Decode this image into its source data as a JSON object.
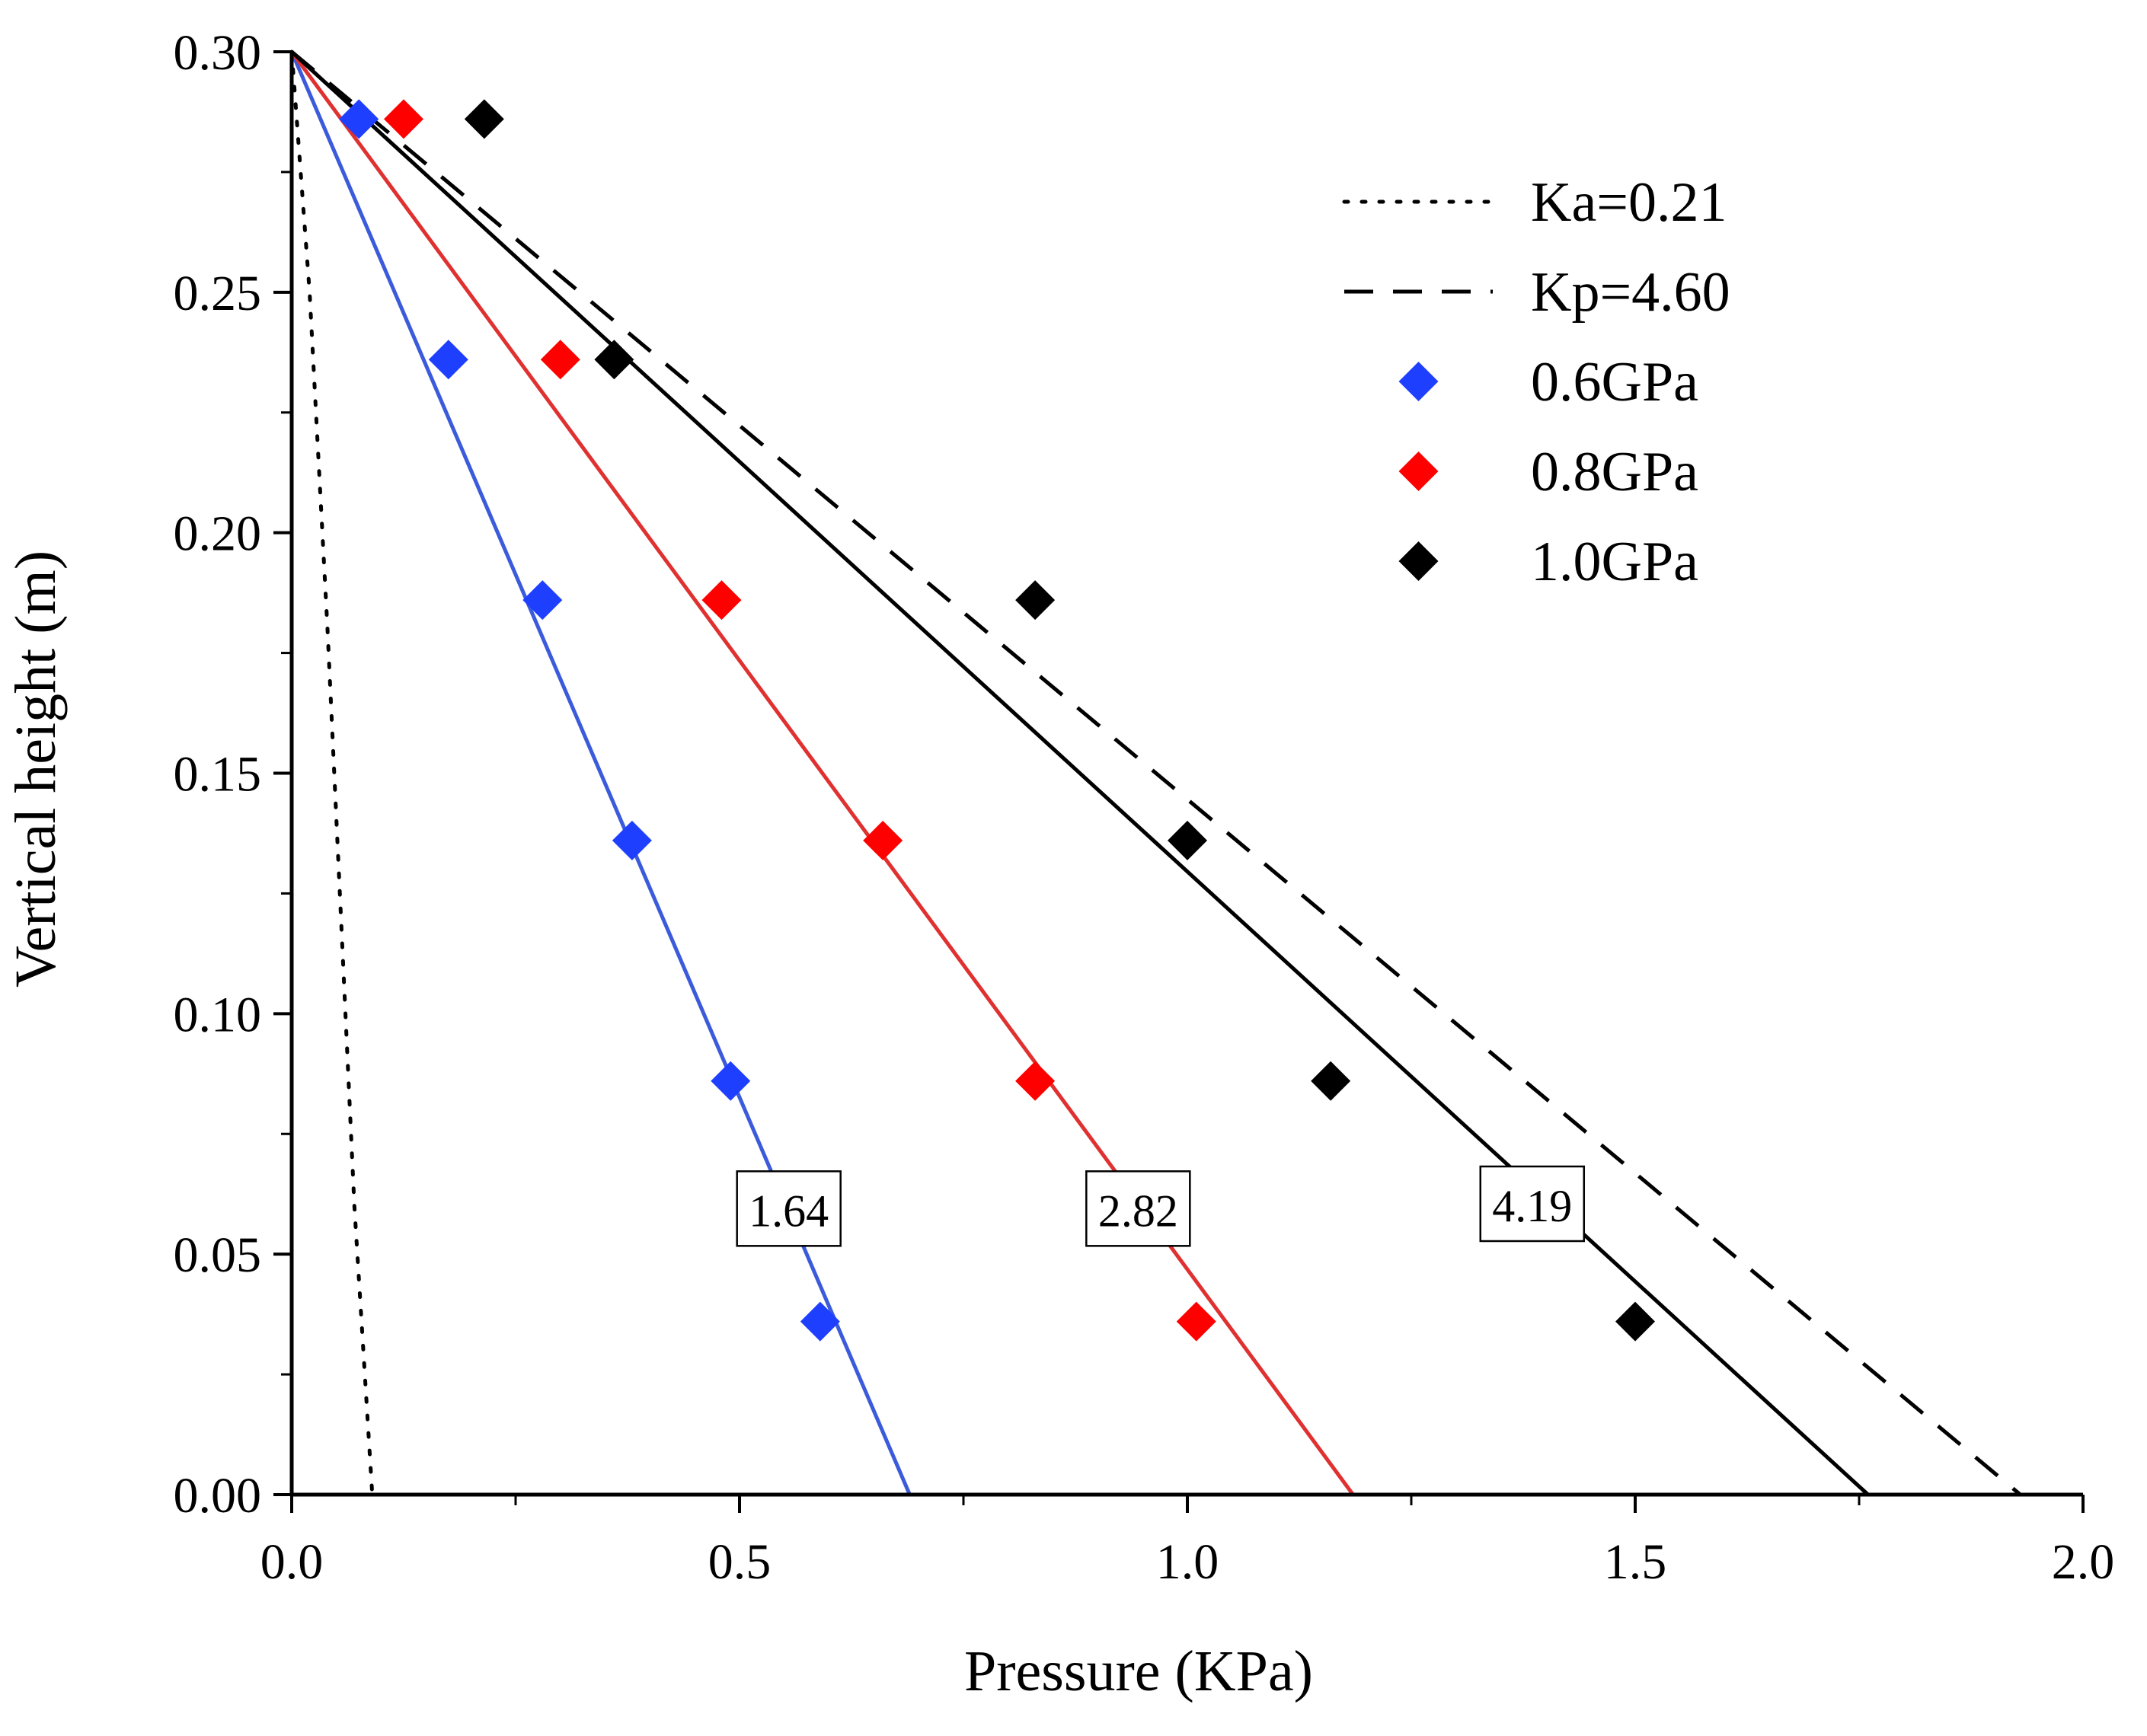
{
  "chart_data": {
    "type": "line",
    "title": "",
    "xlabel": "Pressure (KPa)",
    "ylabel": "Vertical height (m)",
    "xlim": [
      0,
      2.0
    ],
    "ylim": [
      0,
      0.3
    ],
    "xticks": [
      0,
      0.5,
      1.0,
      1.5,
      2.0
    ],
    "xtick_labels": [
      "0.0",
      "0.5",
      "1.0",
      "1.5",
      "2.0"
    ],
    "yticks": [
      0,
      0.05,
      0.1,
      0.15,
      0.2,
      0.25,
      0.3
    ],
    "ytick_labels": [
      "0.00",
      "0.05",
      "0.10",
      "0.15",
      "0.20",
      "0.25",
      "0.30"
    ],
    "legend_position": "top-right",
    "series": [
      {
        "name": "Ka=0.21",
        "kind": "line",
        "style": "dotted",
        "color": "#000000",
        "x": [
          0.0,
          0.02,
          0.04,
          0.055,
          0.07,
          0.09
        ],
        "y": [
          0.3,
          0.25,
          0.18,
          0.12,
          0.06,
          0.0
        ]
      },
      {
        "name": "Kp=4.60",
        "kind": "line",
        "style": "dashed",
        "color": "#000000",
        "x": [
          0.0,
          1.93
        ],
        "y": [
          0.3,
          0.0
        ]
      },
      {
        "name": "0.6GPa",
        "kind": "scatter",
        "color": "#1f3fff",
        "x": [
          0.075,
          0.175,
          0.28,
          0.38,
          0.49,
          0.59
        ],
        "y": [
          0.286,
          0.236,
          0.186,
          0.136,
          0.086,
          0.036
        ]
      },
      {
        "name": "0.8GPa",
        "kind": "scatter",
        "color": "#ff0000",
        "x": [
          0.125,
          0.3,
          0.48,
          0.66,
          0.83,
          1.01
        ],
        "y": [
          0.286,
          0.236,
          0.186,
          0.136,
          0.086,
          0.036
        ]
      },
      {
        "name": "1.0GPa",
        "kind": "scatter",
        "color": "#000000",
        "x": [
          0.215,
          0.36,
          0.83,
          1.0,
          1.16,
          1.5
        ],
        "y": [
          0.286,
          0.236,
          0.186,
          0.136,
          0.086,
          0.036
        ]
      }
    ],
    "fit_lines": [
      {
        "series": "0.6GPa",
        "color": "#3b5bdb",
        "x": [
          0.0,
          0.69
        ],
        "y": [
          0.3,
          0.0
        ]
      },
      {
        "series": "0.8GPa",
        "color": "#e03131",
        "x": [
          0.0,
          1.185
        ],
        "y": [
          0.3,
          0.0
        ]
      },
      {
        "series": "1.0GPa",
        "color": "#000000",
        "x": [
          0.0,
          1.76
        ],
        "y": [
          0.3,
          0.0
        ]
      }
    ],
    "annotations": [
      {
        "text": "1.64",
        "x": 0.555,
        "y": 0.059
      },
      {
        "text": "2.82",
        "x": 0.945,
        "y": 0.059
      },
      {
        "text": "4.19",
        "x": 1.385,
        "y": 0.06
      }
    ]
  }
}
